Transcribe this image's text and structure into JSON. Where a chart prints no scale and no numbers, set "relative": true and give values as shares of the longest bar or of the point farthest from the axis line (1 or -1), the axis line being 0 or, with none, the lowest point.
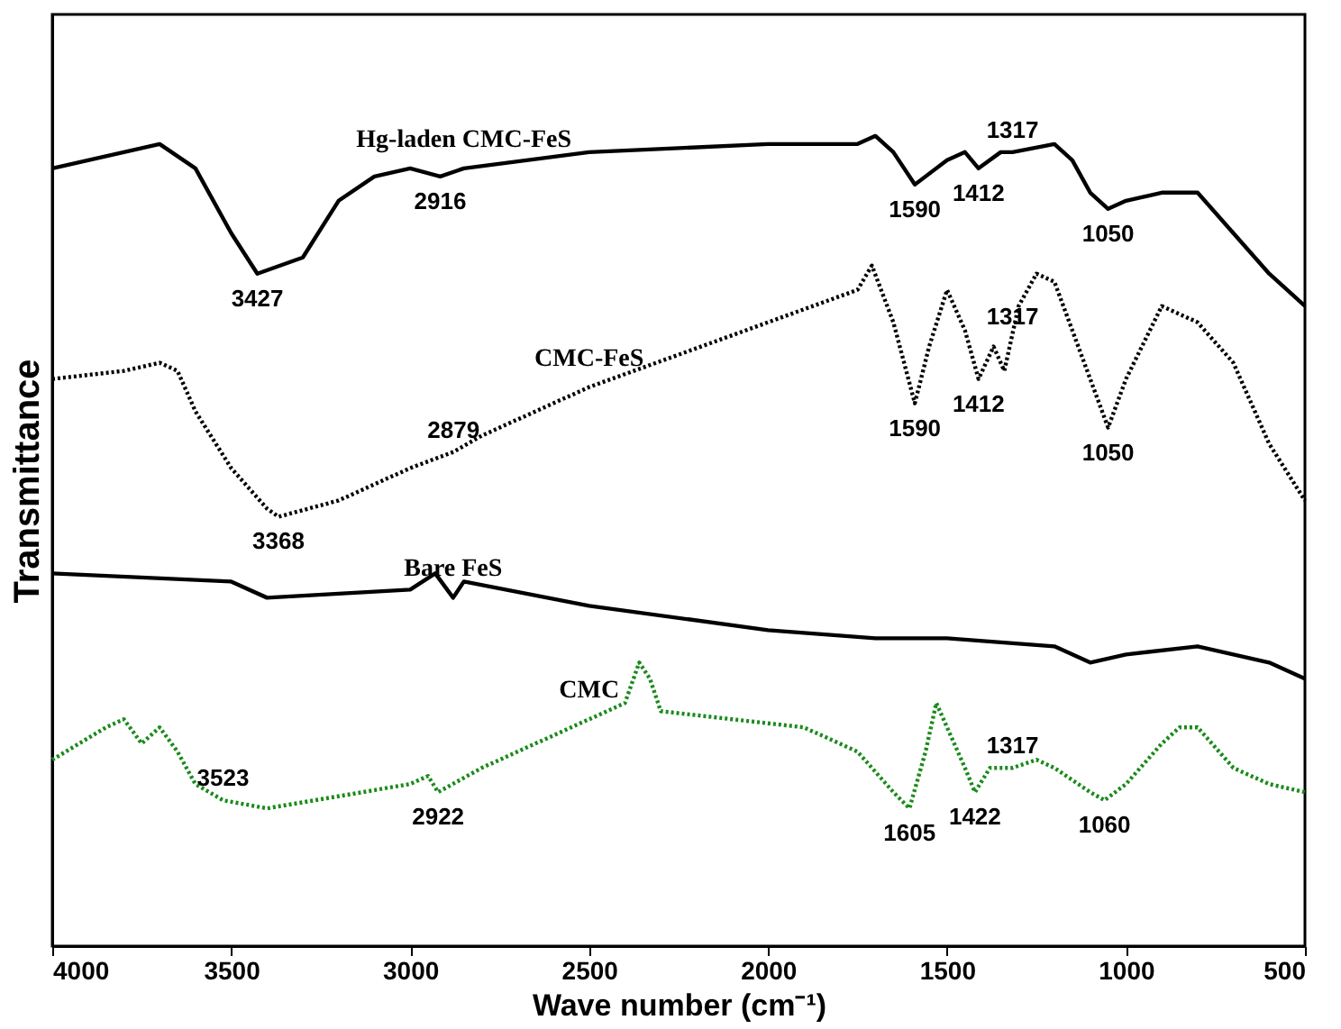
{
  "chart_data": {
    "type": "line",
    "relative": true,
    "xlabel": "Wave number (cm⁻¹)",
    "ylabel": "Transmittance",
    "xlim": [
      4000,
      500
    ],
    "xticks": [
      4000,
      3500,
      3000,
      2500,
      2000,
      1500,
      1000,
      500
    ],
    "tick_labels": "x",
    "grid": false,
    "marker": "none",
    "series": [
      {
        "name": "Hg-laden CMC-FeS",
        "color": "#000000",
        "line_style": "solid",
        "x": [
          4000,
          3700,
          3600,
          3500,
          3427,
          3300,
          3200,
          3100,
          3000,
          2916,
          2850,
          2500,
          2000,
          1750,
          1700,
          1650,
          1590,
          1500,
          1450,
          1412,
          1350,
          1317,
          1200,
          1150,
          1100,
          1050,
          1000,
          900,
          800,
          700,
          600,
          500
        ],
        "values": [
          0.96,
          0.99,
          0.96,
          0.88,
          0.83,
          0.85,
          0.92,
          0.95,
          0.96,
          0.95,
          0.96,
          0.98,
          0.99,
          0.99,
          1.0,
          0.98,
          0.94,
          0.97,
          0.98,
          0.96,
          0.98,
          0.98,
          0.99,
          0.97,
          0.93,
          0.91,
          0.92,
          0.93,
          0.93,
          0.88,
          0.83,
          0.79
        ]
      },
      {
        "name": "CMC-FeS",
        "color": "#000000",
        "line_style": "dotted",
        "x": [
          4000,
          3800,
          3700,
          3650,
          3600,
          3500,
          3400,
          3368,
          3200,
          3000,
          2879,
          2800,
          2500,
          2000,
          1750,
          1710,
          1650,
          1590,
          1550,
          1500,
          1450,
          1412,
          1370,
          1340,
          1300,
          1250,
          1200,
          1150,
          1100,
          1050,
          1000,
          900,
          800,
          700,
          600,
          500
        ],
        "values": [
          0.7,
          0.71,
          0.72,
          0.71,
          0.66,
          0.59,
          0.54,
          0.53,
          0.55,
          0.59,
          0.61,
          0.63,
          0.69,
          0.77,
          0.81,
          0.84,
          0.77,
          0.67,
          0.74,
          0.81,
          0.76,
          0.7,
          0.74,
          0.71,
          0.79,
          0.83,
          0.82,
          0.76,
          0.7,
          0.64,
          0.7,
          0.79,
          0.77,
          0.72,
          0.62,
          0.55
        ]
      },
      {
        "name": "Bare FeS",
        "color": "#000000",
        "line_style": "solid",
        "x": [
          4000,
          3500,
          3400,
          3000,
          2930,
          2880,
          2850,
          2500,
          2000,
          1700,
          1500,
          1200,
          1100,
          1000,
          800,
          600,
          500
        ],
        "values": [
          0.46,
          0.45,
          0.43,
          0.44,
          0.46,
          0.43,
          0.45,
          0.42,
          0.39,
          0.38,
          0.38,
          0.37,
          0.35,
          0.36,
          0.37,
          0.35,
          0.33
        ]
      },
      {
        "name": "CMC",
        "color": "#1a8a1a",
        "line_style": "dotted",
        "x": [
          4000,
          3850,
          3800,
          3750,
          3700,
          3650,
          3600,
          3523,
          3400,
          3000,
          2950,
          2922,
          2800,
          2500,
          2400,
          2360,
          2330,
          2300,
          2100,
          1900,
          1750,
          1650,
          1605,
          1560,
          1530,
          1500,
          1450,
          1422,
          1380,
          1317,
          1250,
          1200,
          1100,
          1060,
          1000,
          900,
          850,
          800,
          700,
          600,
          500
        ],
        "values": [
          0.23,
          0.27,
          0.28,
          0.25,
          0.27,
          0.24,
          0.2,
          0.18,
          0.17,
          0.2,
          0.21,
          0.19,
          0.22,
          0.28,
          0.3,
          0.35,
          0.33,
          0.29,
          0.28,
          0.27,
          0.24,
          0.19,
          0.17,
          0.24,
          0.3,
          0.27,
          0.22,
          0.19,
          0.22,
          0.22,
          0.23,
          0.22,
          0.19,
          0.18,
          0.2,
          0.25,
          0.27,
          0.27,
          0.22,
          0.2,
          0.19
        ]
      }
    ],
    "annotations": [
      {
        "text": "3427",
        "x": 3427,
        "y": 0.83
      },
      {
        "text": "2916",
        "x": 2916,
        "y": 0.95
      },
      {
        "text": "1590",
        "x": 1590,
        "y": 0.94
      },
      {
        "text": "1412",
        "x": 1412,
        "y": 0.96
      },
      {
        "text": "1317",
        "x": 1317,
        "y": 0.98
      },
      {
        "text": "1050",
        "x": 1050,
        "y": 0.91
      },
      {
        "text": "3368",
        "x": 3368,
        "y": 0.53
      },
      {
        "text": "2879",
        "x": 2879,
        "y": 0.61
      },
      {
        "text": "1590",
        "x": 1590,
        "y": 0.67
      },
      {
        "text": "1412",
        "x": 1412,
        "y": 0.7
      },
      {
        "text": "1317",
        "x": 1317,
        "y": 0.75
      },
      {
        "text": "1050",
        "x": 1050,
        "y": 0.64
      },
      {
        "text": "3523",
        "x": 3523,
        "y": 0.18
      },
      {
        "text": "2922",
        "x": 2922,
        "y": 0.19
      },
      {
        "text": "1605",
        "x": 1605,
        "y": 0.17
      },
      {
        "text": "1422",
        "x": 1422,
        "y": 0.19
      },
      {
        "text": "1317",
        "x": 1317,
        "y": 0.22
      },
      {
        "text": "1060",
        "x": 1060,
        "y": 0.18
      }
    ]
  }
}
